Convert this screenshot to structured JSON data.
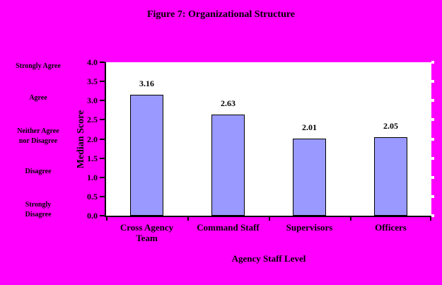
{
  "figure": {
    "title": "Figure 7: Organizational Structure"
  },
  "chart_data": {
    "type": "bar",
    "title": "Figure 7: Organizational Structure",
    "categories": [
      "Cross Agency\nTeam",
      "Command Staff",
      "Supervisors",
      "Officers"
    ],
    "values": [
      3.16,
      2.63,
      2.01,
      2.05
    ],
    "value_labels": [
      "3.16",
      "2.63",
      "2.01",
      "2.05"
    ],
    "xlabel": "Agency Staff Level",
    "ylabel": "Median Score",
    "ylim": [
      0.0,
      4.0
    ],
    "ytick_step": 0.5,
    "ytick_labels": [
      "4.0",
      "3.5",
      "3.0",
      "2.5",
      "2.0",
      "1.5",
      "1.0",
      "0.5",
      "0.0"
    ],
    "left_scale_labels": [
      "Strongly Agree",
      "Agree",
      "Neither Agree\nnor Disagree",
      "Disagree",
      "Strongly\nDisagree"
    ],
    "grid": false,
    "legend_position": "none",
    "colors": {
      "background": "#FF00FF",
      "plot_background": "#FFFFFF",
      "bar_fill": "#9999FF",
      "bar_border": "#000000",
      "axis": "#000000",
      "text": "#000000"
    }
  }
}
